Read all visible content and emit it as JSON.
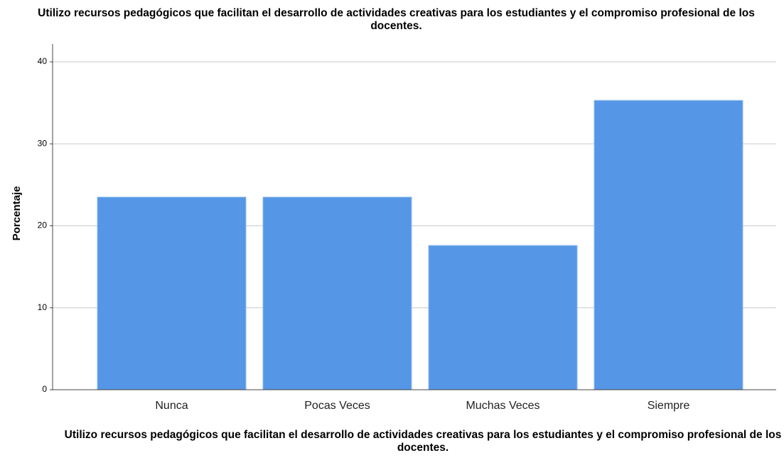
{
  "chart_data": {
    "type": "bar",
    "title": "Utilizo recursos pedagógicos que facilitan el desarrollo de actividades creativas para los estudiantes y el compromiso profesional de los docentes.",
    "x_label": "Utilizo recursos pedagógicos que facilitan el desarrollo de actividades creativas para los estudiantes y el compromiso profesional de los docentes.",
    "y_label": "Porcentaje",
    "categories": [
      "Nunca",
      "Pocas Veces",
      "Muchas Veces",
      "Siempre"
    ],
    "values": [
      23.5,
      23.5,
      17.6,
      35.3
    ],
    "color": "#5596e6",
    "ylim": [
      0,
      40
    ],
    "yticks": [
      0,
      10,
      20,
      30,
      40
    ],
    "grid": true
  }
}
